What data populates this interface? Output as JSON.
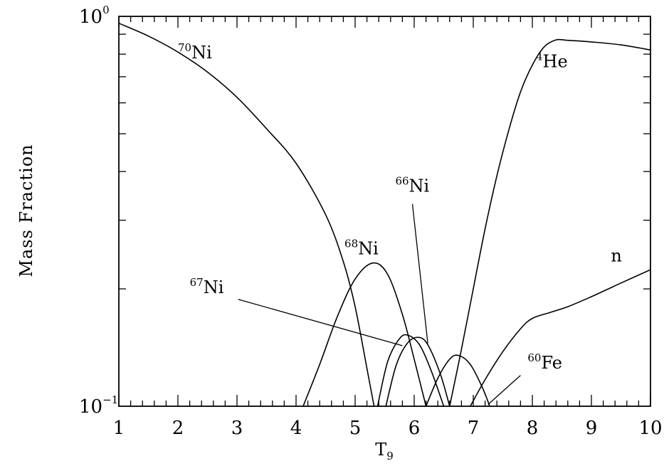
{
  "chart_data": {
    "type": "line",
    "xlabel": "T",
    "xlabel_sub": "9",
    "ylabel": "Mass Fraction",
    "xlim": [
      1,
      10
    ],
    "ylim": [
      0.1,
      1.0
    ],
    "yscale": "log",
    "x_ticks": [
      "1",
      "2",
      "3",
      "4",
      "5",
      "6",
      "7",
      "8",
      "9",
      "10"
    ],
    "y_ticks": [
      {
        "base": "10",
        "exp": "−1",
        "value": 0.1
      },
      {
        "base": "10",
        "exp": "0",
        "value": 1.0
      }
    ],
    "grid": false,
    "series": [
      {
        "name": "70Ni",
        "label_mass": "70",
        "label_elem": "Ni",
        "x": [
          1.0,
          1.5,
          2.0,
          2.5,
          3.0,
          3.5,
          4.0,
          4.5,
          4.8,
          5.0,
          5.2,
          5.32
        ],
        "y": [
          0.96,
          0.89,
          0.81,
          0.72,
          0.62,
          0.515,
          0.42,
          0.31,
          0.235,
          0.18,
          0.125,
          0.1
        ]
      },
      {
        "name": "68Ni",
        "label_mass": "68",
        "label_elem": "Ni",
        "x": [
          4.12,
          4.4,
          4.7,
          5.0,
          5.3,
          5.55,
          5.8,
          6.0,
          6.2
        ],
        "y": [
          0.1,
          0.128,
          0.17,
          0.212,
          0.233,
          0.218,
          0.172,
          0.132,
          0.1
        ]
      },
      {
        "name": "67Ni",
        "label_mass": "67",
        "label_elem": "Ni",
        "x": [
          5.38,
          5.55,
          5.75,
          5.9,
          6.1,
          6.3,
          6.5
        ],
        "y": [
          0.1,
          0.13,
          0.149,
          0.152,
          0.143,
          0.122,
          0.1
        ]
      },
      {
        "name": "66Ni",
        "label_mass": "66",
        "label_elem": "Ni",
        "x": [
          5.52,
          5.7,
          5.9,
          6.1,
          6.25,
          6.45,
          6.6
        ],
        "y": [
          0.1,
          0.128,
          0.146,
          0.15,
          0.142,
          0.12,
          0.1
        ]
      },
      {
        "name": "60Fe",
        "label_mass": "60",
        "label_elem": "Fe",
        "x": [
          6.2,
          6.4,
          6.6,
          6.75,
          6.95,
          7.15,
          7.28
        ],
        "y": [
          0.1,
          0.118,
          0.132,
          0.135,
          0.128,
          0.112,
          0.1
        ]
      },
      {
        "name": "4He",
        "label_mass": "4",
        "label_elem": "He",
        "x": [
          6.6,
          6.8,
          7.0,
          7.2,
          7.4,
          7.6,
          7.8,
          8.0,
          8.2,
          8.4,
          8.6,
          9.0,
          9.5,
          10.0
        ],
        "y": [
          0.1,
          0.14,
          0.2,
          0.285,
          0.39,
          0.51,
          0.64,
          0.75,
          0.835,
          0.87,
          0.868,
          0.86,
          0.845,
          0.82
        ]
      },
      {
        "name": "n",
        "label_mass": "",
        "label_elem": "n",
        "x": [
          6.95,
          7.2,
          7.5,
          7.8,
          8.0,
          8.3,
          8.6,
          9.0,
          9.5,
          10.0
        ],
        "y": [
          0.1,
          0.117,
          0.138,
          0.158,
          0.168,
          0.174,
          0.18,
          0.191,
          0.207,
          0.224
        ]
      }
    ]
  }
}
